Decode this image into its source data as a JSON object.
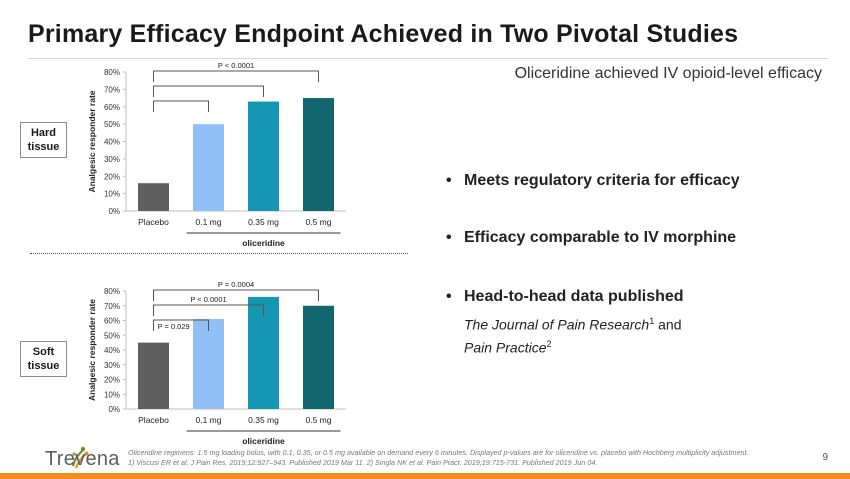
{
  "slide": {
    "title": "Primary Efficacy Endpoint Achieved in Two Pivotal Studies",
    "subtitle": "Oliceridine achieved IV opioid-level efficacy",
    "page_number": "9"
  },
  "labels": {
    "hard": [
      "Hard",
      "tissue"
    ],
    "soft": [
      "Soft",
      "tissue"
    ]
  },
  "bullets": [
    "Meets regulatory criteria for efficacy",
    "Efficacy comparable to IV morphine",
    "Head-to-head data published"
  ],
  "publication": {
    "journal_1": "The Journal of Pain Research",
    "sup_1": "1",
    "connector": " and",
    "journal_2": "Pain Practice",
    "sup_2": "2"
  },
  "logo": {
    "wordmark": "Trevena"
  },
  "footnote": {
    "line1": "Oliceridine regimens: 1.5 mg loading bolus, with 0.1, 0.35, or 0.5 mg available on demand every 6 minutes. Displayed p-values are for oliceridine vs. placebo with Hochberg multiplicity adjustment.",
    "line2": "1) Viscusi ER et al. J Pain Res. 2019;12:927–943. Published 2019 Mar 11. 2) Singla NK et al. Pain Pract. 2019;19:715-731. Published 2019 Jun 04."
  },
  "colors": {
    "placebo": "#5f5f5f",
    "dose_01": "#91bff8",
    "dose_035": "#1597b3",
    "dose_05": "#126670",
    "accent_bar": "#f28c1e"
  },
  "chart_data": [
    {
      "type": "bar",
      "ylabel": "Analgesic responder rate",
      "group_label": "oliceridine",
      "categories": [
        "Placebo",
        "0.1 mg",
        "0.35 mg",
        "0.5 mg"
      ],
      "values": [
        16,
        50,
        63,
        65
      ],
      "ylim": [
        0,
        80
      ],
      "ticks": [
        "0%",
        "10%",
        "20%",
        "30%",
        "40%",
        "50%",
        "60%",
        "70%",
        "80%"
      ],
      "brackets": [
        {
          "label": "P < 0.0001",
          "from": 0,
          "to": 3
        },
        {
          "label": "",
          "from": 0,
          "to": 2
        },
        {
          "label": "",
          "from": 0,
          "to": 1
        }
      ]
    },
    {
      "type": "bar",
      "ylabel": "Analgesic responder rate",
      "group_label": "oliceridine",
      "categories": [
        "Placebo",
        "0.1 mg",
        "0.35 mg",
        "0.5 mg"
      ],
      "values": [
        45,
        61,
        76,
        70
      ],
      "ylim": [
        0,
        80
      ],
      "ticks": [
        "0%",
        "10%",
        "20%",
        "30%",
        "40%",
        "50%",
        "60%",
        "70%",
        "80%"
      ],
      "brackets": [
        {
          "label": "P = 0.0004",
          "from": 0,
          "to": 3
        },
        {
          "label": "P < 0.0001",
          "from": 0,
          "to": 2
        },
        {
          "label": "P = 0.029",
          "from": 0,
          "to": 1
        }
      ]
    }
  ]
}
